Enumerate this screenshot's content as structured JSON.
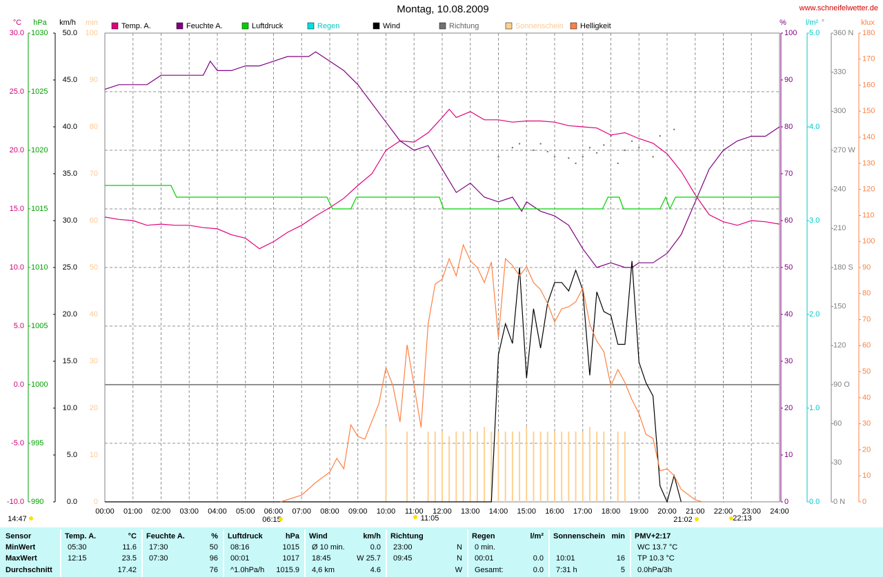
{
  "title": "Montag, 10.08.2009",
  "site": "www.schneifelwetter.de",
  "chart_data": {
    "type": "line",
    "grid": true,
    "xlim": [
      0,
      24
    ],
    "xticks": [
      {
        "value": 0,
        "label": "00:00"
      },
      {
        "value": 1,
        "label": "01:00"
      },
      {
        "value": 2,
        "label": "02:00"
      },
      {
        "value": 3,
        "label": "03:00"
      },
      {
        "value": 4,
        "label": "04:00"
      },
      {
        "value": 5,
        "label": "05:00"
      },
      {
        "value": 6,
        "label": "06:00"
      },
      {
        "value": 7,
        "label": "07:00"
      },
      {
        "value": 8,
        "label": "08:00"
      },
      {
        "value": 9,
        "label": "09:00"
      },
      {
        "value": 10,
        "label": "10:00"
      },
      {
        "value": 11,
        "label": "11:00"
      },
      {
        "value": 12,
        "label": "12:00"
      },
      {
        "value": 13,
        "label": "13:00"
      },
      {
        "value": 14,
        "label": "14:00"
      },
      {
        "value": 15,
        "label": "15:00"
      },
      {
        "value": 16,
        "label": "16:00"
      },
      {
        "value": 17,
        "label": "17:00"
      },
      {
        "value": 18,
        "label": "18:00"
      },
      {
        "value": 19,
        "label": "19:00"
      },
      {
        "value": 20,
        "label": "20:00"
      },
      {
        "value": 21,
        "label": "21:00"
      },
      {
        "value": 22,
        "label": "22:00"
      },
      {
        "value": 23,
        "label": "23:00"
      },
      {
        "value": 24,
        "label": "24:00"
      }
    ],
    "axes": {
      "temp": {
        "label": "°C",
        "color": "#d0007a",
        "lim": [
          -10,
          30
        ],
        "ticks": [
          {
            "value": -10,
            "label": "-10.0"
          },
          {
            "value": -5,
            "label": "-5.0"
          },
          {
            "value": 0,
            "label": "0.0"
          },
          {
            "value": 5,
            "label": "5.0"
          },
          {
            "value": 10,
            "label": "10.0"
          },
          {
            "value": 15,
            "label": "15.0"
          },
          {
            "value": 20,
            "label": "20.0"
          },
          {
            "value": 25,
            "label": "25.0"
          },
          {
            "value": 30,
            "label": "30.0"
          }
        ]
      },
      "pressure": {
        "label": "hPa",
        "color": "#00a000",
        "lim": [
          990,
          1030
        ],
        "ticks": [
          990,
          995,
          1000,
          1005,
          1010,
          1015,
          1020,
          1025,
          1030
        ]
      },
      "wind": {
        "label": "km/h",
        "color": "#000000",
        "lim": [
          0,
          50
        ],
        "ticks": [
          {
            "value": 0,
            "label": "0.0"
          },
          {
            "value": 5,
            "label": "5.0"
          },
          {
            "value": 10,
            "label": "10.0"
          },
          {
            "value": 15,
            "label": "15.0"
          },
          {
            "value": 20,
            "label": "20.0"
          },
          {
            "value": 25,
            "label": "25.0"
          },
          {
            "value": 30,
            "label": "30.0"
          },
          {
            "value": 35,
            "label": "35.0"
          },
          {
            "value": 40,
            "label": "40.0"
          },
          {
            "value": 45,
            "label": "45.0"
          },
          {
            "value": 50,
            "label": "50.0"
          }
        ]
      },
      "sun": {
        "label": "min",
        "color": "#ffc890",
        "lim": [
          0,
          100
        ],
        "ticks": [
          0,
          10,
          20,
          30,
          40,
          50,
          60,
          70,
          80,
          90,
          100
        ]
      },
      "humidity": {
        "label": "%",
        "color": "#800080",
        "lim": [
          0,
          100
        ],
        "ticks": [
          0,
          10,
          20,
          30,
          40,
          50,
          60,
          70,
          80,
          90,
          100
        ]
      },
      "rain": {
        "label": "l/m²",
        "color": "#00c8c8",
        "lim": [
          0,
          5
        ],
        "ticks": [
          {
            "value": 0,
            "label": "0.0"
          },
          {
            "value": 1,
            "label": "1.0"
          },
          {
            "value": 2,
            "label": "2.0"
          },
          {
            "value": 3,
            "label": "3.0"
          },
          {
            "value": 4,
            "label": "4.0"
          },
          {
            "value": 5,
            "label": "5.0"
          }
        ]
      },
      "direction": {
        "label": "°",
        "color": "#808080",
        "lim": [
          0,
          360
        ],
        "ticks": [
          {
            "value": 0,
            "label": "0 N"
          },
          30,
          60,
          {
            "value": 90,
            "label": "90 O"
          },
          120,
          150,
          {
            "value": 180,
            "label": "180 S"
          },
          210,
          240,
          {
            "value": 270,
            "label": "270 W"
          },
          300,
          330,
          {
            "value": 360,
            "label": "360 N"
          }
        ]
      },
      "klux": {
        "label": "klux",
        "color": "#ff8040",
        "lim": [
          0,
          180
        ],
        "ticks": [
          0,
          10,
          20,
          30,
          40,
          50,
          60,
          70,
          80,
          90,
          100,
          110,
          120,
          130,
          140,
          150,
          160,
          170,
          180
        ]
      }
    },
    "series": [
      {
        "name": "Temp. A.",
        "color": "#e0007a",
        "axis": "temp",
        "style": "line",
        "x": [
          0,
          0.5,
          1,
          1.5,
          2,
          2.5,
          3,
          3.5,
          4,
          4.5,
          5,
          5.5,
          6,
          6.5,
          7,
          7.5,
          8,
          8.5,
          9,
          9.5,
          10,
          10.5,
          11,
          11.5,
          12,
          12.25,
          12.5,
          13,
          13.5,
          14,
          14.5,
          15,
          15.5,
          16,
          16.5,
          17,
          17.5,
          18,
          18.5,
          19,
          19.5,
          20,
          20.5,
          21,
          21.5,
          22,
          22.5,
          23,
          23.5,
          24
        ],
        "values": [
          14.3,
          14.1,
          14.0,
          13.6,
          13.7,
          13.6,
          13.6,
          13.4,
          13.3,
          12.8,
          12.5,
          11.6,
          12.2,
          13.0,
          13.6,
          14.4,
          15.1,
          15.9,
          17.0,
          18.0,
          20.0,
          20.8,
          20.7,
          21.5,
          22.8,
          23.5,
          22.8,
          23.3,
          22.6,
          22.6,
          22.4,
          22.5,
          22.5,
          22.4,
          22.1,
          22.0,
          21.9,
          21.3,
          21.5,
          21.0,
          20.6,
          19.7,
          18.2,
          16.2,
          14.5,
          13.9,
          13.6,
          14.0,
          13.9,
          13.7
        ]
      },
      {
        "name": "Feuchte A.",
        "color": "#800080",
        "axis": "humidity",
        "style": "line",
        "x": [
          0,
          0.5,
          1,
          1.5,
          2,
          2.5,
          3,
          3.5,
          3.75,
          4,
          4.5,
          5,
          5.5,
          6,
          6.5,
          7,
          7.25,
          7.5,
          8,
          8.5,
          9,
          9.5,
          10,
          10.5,
          11,
          11.5,
          12,
          12.5,
          13,
          13.5,
          14,
          14.5,
          14.83,
          15,
          15.5,
          16,
          16.5,
          17,
          17.5,
          18,
          18.5,
          18.75,
          19,
          19.5,
          20,
          20.5,
          21,
          21.5,
          22,
          22.5,
          23,
          23.5,
          24
        ],
        "values": [
          88,
          89,
          89,
          89,
          91,
          91,
          91,
          91,
          94,
          92,
          92,
          93,
          93,
          94,
          95,
          95,
          95,
          96,
          94,
          92,
          89,
          85,
          81,
          77,
          75,
          76,
          71,
          66,
          68,
          65,
          64,
          65,
          62,
          64,
          62,
          61,
          59,
          54,
          50,
          51,
          50,
          50,
          51,
          51,
          53,
          57,
          64,
          71,
          75,
          77,
          78,
          78,
          80
        ]
      },
      {
        "name": "Luftdruck",
        "color": "#00d000",
        "axis": "pressure",
        "style": "line",
        "x": [
          0,
          2.35,
          2.55,
          7.9,
          8.1,
          8.75,
          8.95,
          11.9,
          12.05,
          17.7,
          17.9,
          18.3,
          18.45,
          19.75,
          19.95,
          20.1,
          20.3,
          24
        ],
        "values": [
          1017,
          1017,
          1016,
          1016,
          1015,
          1015,
          1016,
          1016,
          1015,
          1015,
          1016,
          1016,
          1015,
          1015,
          1016,
          1015,
          1016,
          1016
        ]
      },
      {
        "name": "Regen",
        "color": "#00e0e0",
        "axis": "rain",
        "style": "line",
        "x": [],
        "values": []
      },
      {
        "name": "Wind",
        "color": "#000000",
        "axis": "wind",
        "style": "line",
        "x": [
          0,
          13.75,
          14,
          14.25,
          14.5,
          14.75,
          15,
          15.25,
          15.5,
          15.75,
          16,
          16.25,
          16.5,
          16.75,
          17,
          17.25,
          17.5,
          17.75,
          18,
          18.25,
          18.5,
          18.75,
          19,
          19.25,
          19.5,
          19.75,
          20,
          20.25,
          20.5
        ],
        "values": [
          0,
          0,
          15.7,
          19,
          16.9,
          25,
          13.2,
          20.6,
          16.4,
          21.2,
          23.4,
          23.4,
          22.5,
          24.7,
          22.6,
          13.5,
          22.4,
          20.3,
          19.9,
          16.8,
          16.8,
          25.7,
          14.9,
          12.7,
          11.3,
          1.7,
          0,
          2.8,
          0
        ]
      },
      {
        "name": "Richtung",
        "color": "#707070",
        "axis": "direction",
        "style": "dots",
        "x": [
          14,
          14.5,
          14.75,
          15.25,
          15.5,
          15.75,
          16,
          16.5,
          16.75,
          17,
          17.25,
          17.5,
          17.75,
          18,
          18.25,
          18.5,
          18.75,
          19,
          19.5,
          19.75,
          20.25
        ],
        "values": [
          265,
          272,
          275,
          270,
          275,
          269,
          265,
          264,
          260,
          265,
          272,
          268,
          274,
          281,
          260,
          270,
          277,
          272,
          265,
          281,
          286
        ]
      },
      {
        "name": "Sonnenschein",
        "color": "#ffd090",
        "axis": "sun",
        "style": "bars",
        "x": [
          10,
          10.75,
          11.5,
          11.75,
          12,
          12.25,
          12.5,
          12.75,
          13,
          13.25,
          13.5,
          13.75,
          14,
          14.25,
          14.5,
          14.75,
          15,
          15.25,
          15.5,
          15.75,
          16,
          16.25,
          16.5,
          16.75,
          17,
          17.25,
          17.5,
          17.75,
          18.25,
          18.5
        ],
        "values": [
          16,
          15,
          15,
          15,
          15,
          14,
          15,
          15,
          15,
          15,
          16,
          15,
          15,
          15,
          15,
          15,
          16,
          15,
          15,
          15,
          15,
          15,
          15,
          15,
          15,
          16,
          15,
          15,
          15,
          15
        ]
      },
      {
        "name": "Helligkeit",
        "color": "#ff8040",
        "axis": "klux",
        "style": "line",
        "x": [
          6.25,
          7,
          7.5,
          8,
          8.25,
          8.5,
          8.75,
          9,
          9.25,
          9.75,
          10,
          10.25,
          10.5,
          10.75,
          11,
          11.25,
          11.5,
          11.75,
          12,
          12.25,
          12.5,
          12.75,
          13,
          13.25,
          13.5,
          13.75,
          14,
          14.25,
          14.5,
          14.75,
          15,
          15.25,
          15.5,
          15.75,
          16,
          16.25,
          16.5,
          16.75,
          17,
          17.25,
          17.5,
          17.75,
          18,
          18.25,
          18.5,
          18.75,
          19,
          19.25,
          19.5,
          19.75,
          20,
          20.25,
          20.5,
          21,
          21.25
        ],
        "values": [
          0,
          2.6,
          7.4,
          11.4,
          16.7,
          12.7,
          29.6,
          25.1,
          24.1,
          37.8,
          51.6,
          44.5,
          30.7,
          60.3,
          44.5,
          28.6,
          68.3,
          83.6,
          85.5,
          93.4,
          86.8,
          98.7,
          92.6,
          90,
          84.2,
          92.1,
          63,
          93.4,
          90.8,
          86.8,
          90.3,
          84.2,
          81.5,
          76.2,
          69.1,
          74.1,
          74.9,
          76.8,
          82.1,
          68.3,
          61.7,
          57.7,
          44.5,
          50.8,
          45.8,
          39.2,
          33.9,
          25.9,
          24.4,
          11.9,
          12.7,
          10.1,
          4.8,
          0.8,
          0
        ]
      }
    ],
    "annotations": [
      "14:47",
      "06:15",
      "11:05",
      "21:02",
      "22:13"
    ]
  },
  "table": [
    {
      "title": "Sensor",
      "rows": [
        [
          "MinWert",
          null
        ],
        [
          "MaxWert",
          null
        ],
        [
          "Durchschnitt",
          null
        ]
      ]
    },
    {
      "title": "Temp. A.",
      "unit": "°C",
      "rows": [
        [
          "05:30",
          "11.6"
        ],
        [
          "12:15",
          "23.5"
        ],
        [
          null,
          "17.42"
        ]
      ]
    },
    {
      "title": "Feuchte A.",
      "unit": "%",
      "rows": [
        [
          "17:30",
          "50"
        ],
        [
          "07:30",
          "96"
        ],
        [
          null,
          "76"
        ]
      ]
    },
    {
      "title": "Luftdruck",
      "unit": "hPa",
      "rows": [
        [
          "08:16",
          "1015"
        ],
        [
          "00:01",
          "1017"
        ],
        [
          "^1.0hPa/h",
          "1015.9"
        ]
      ]
    },
    {
      "title": "Wind",
      "unit": "km/h",
      "rows": [
        [
          "Ø 10 min.",
          "0.0"
        ],
        [
          "18:45",
          "W 25.7"
        ],
        [
          "4,6 km",
          "4.6"
        ]
      ]
    },
    {
      "title": "Richtung",
      "rows": [
        [
          "23:00",
          "N"
        ],
        [
          "09:45",
          "N"
        ],
        [
          null,
          "W"
        ]
      ]
    },
    {
      "title": "Regen",
      "unit": "l/m²",
      "rows": [
        [
          "0 min.",
          null
        ],
        [
          "00:01",
          "0.0"
        ],
        [
          "Gesamt:",
          "0.0"
        ]
      ]
    },
    {
      "title": "Sonnenschein",
      "unit": "min",
      "rows": [
        [
          null,
          null
        ],
        [
          "10:01",
          "16"
        ],
        [
          "7:31 h",
          "5"
        ]
      ]
    },
    {
      "title": "PMV+2:17",
      "rows": [
        [
          "WC 13.7 °C",
          null
        ],
        [
          "TP 10.3 °C",
          null
        ],
        [
          "0.0hPa/3h",
          null
        ]
      ]
    }
  ]
}
